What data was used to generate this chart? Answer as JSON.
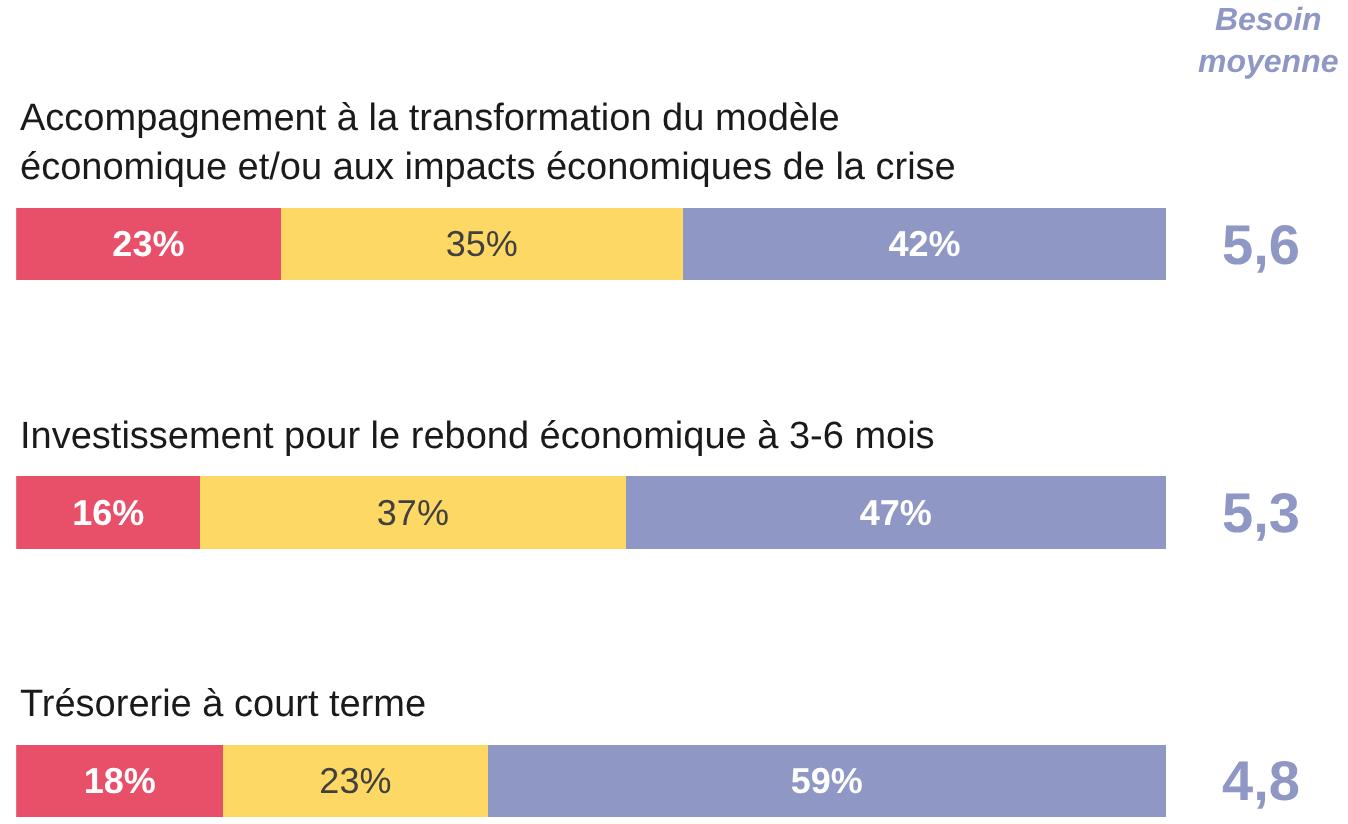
{
  "chart_data": {
    "type": "bar",
    "orientation": "horizontal",
    "stacked": true,
    "categories": [
      "Accompagnement à la transformation du modèle économique et/ou aux impacts économiques de la crise",
      "Investissement pour le rebond économique à 3-6 mois",
      "Trésorerie à court terme"
    ],
    "series": [
      {
        "color": "#e8506a",
        "values": [
          23,
          16,
          18
        ],
        "value_labels": [
          "23%",
          "16%",
          "18%"
        ]
      },
      {
        "color": "#fdd865",
        "values": [
          35,
          37,
          23
        ],
        "value_labels": [
          "35%",
          "37%",
          "23%"
        ]
      },
      {
        "color": "#8f97c5",
        "values": [
          42,
          47,
          59
        ],
        "value_labels": [
          "42%",
          "47%",
          "59%"
        ]
      }
    ],
    "xlim": [
      0,
      100
    ],
    "tick_labels": false,
    "annotations": [
      "Besoin moyenne",
      "5,6",
      "5,3",
      "4,8"
    ]
  }
}
